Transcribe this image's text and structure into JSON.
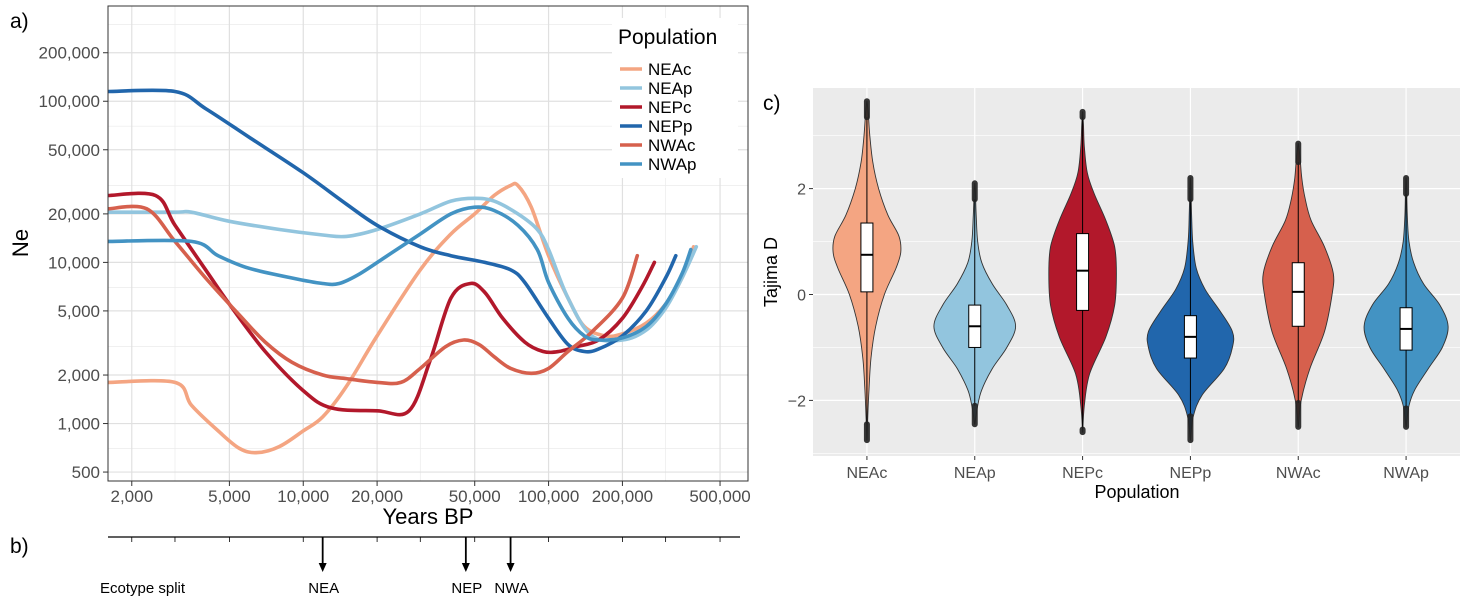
{
  "panels": {
    "a": "a)",
    "b": "b)",
    "c": "c)"
  },
  "colors": {
    "NEAc": "#f4a582",
    "NEAp": "#92c5de",
    "NEPc": "#b2182b",
    "NEPp": "#2166ac",
    "NWAc": "#d6604d",
    "NWAp": "#4393c3",
    "panel_c_bg": "#ebebeb",
    "panel_c_grid": "#ffffff",
    "panel_a_grid": "#ebebeb",
    "panel_a_border": "#333333"
  },
  "chart_data": [
    {
      "type": "line",
      "xlabel": "Years BP",
      "ylabel": "Ne",
      "xscale": "log",
      "yscale": "log",
      "xlim": [
        1600,
        650000
      ],
      "ylim": [
        440,
        390000
      ],
      "xticks": [
        2000,
        5000,
        10000,
        20000,
        50000,
        100000,
        200000,
        500000
      ],
      "xtick_labels": [
        "2,000",
        "5,000",
        "10,000",
        "20,000",
        "50,000",
        "100,000",
        "200,000",
        "500,000"
      ],
      "yticks": [
        500,
        1000,
        2000,
        5000,
        10000,
        20000,
        50000,
        100000,
        200000
      ],
      "ytick_labels": [
        "500",
        "1,000",
        "2,000",
        "5,000",
        "10,000",
        "20,000",
        "50,000",
        "100,000",
        "200,000"
      ],
      "grid": true,
      "legend": {
        "title": "Population",
        "position": "top-right"
      },
      "series": [
        {
          "name": "NEAc",
          "x": [
            1600,
            3000,
            3500,
            4500,
            5500,
            6500,
            8000,
            10000,
            12000,
            15000,
            20000,
            30000,
            40000,
            50000,
            60000,
            70000,
            75000,
            85000,
            100000,
            120000,
            140000,
            170000,
            200000,
            250000,
            300000,
            350000,
            390000
          ],
          "y": [
            1800,
            1800,
            1300,
            900,
            700,
            660,
            720,
            900,
            1100,
            1700,
            3500,
            9000,
            15000,
            20000,
            26000,
            30000,
            30000,
            22000,
            11000,
            6000,
            4000,
            3500,
            3600,
            4200,
            5500,
            8000,
            12500
          ]
        },
        {
          "name": "NEAp",
          "x": [
            1600,
            3000,
            3500,
            5000,
            8000,
            12000,
            15000,
            20000,
            30000,
            40000,
            50000,
            60000,
            75000,
            90000,
            100000,
            120000,
            150000,
            200000,
            250000,
            300000,
            350000,
            400000
          ],
          "y": [
            20500,
            20500,
            20500,
            18000,
            16000,
            14800,
            14500,
            16000,
            20000,
            24000,
            25000,
            24000,
            20000,
            16000,
            12000,
            6000,
            3500,
            3300,
            3800,
            5200,
            8000,
            12500
          ]
        },
        {
          "name": "NEPc",
          "x": [
            1600,
            2500,
            3000,
            4000,
            5000,
            7000,
            10000,
            13000,
            20000,
            27000,
            33000,
            40000,
            48000,
            55000,
            65000,
            80000,
            95000,
            110000,
            130000,
            160000,
            200000,
            240000,
            270000
          ],
          "y": [
            26000,
            26000,
            17000,
            9000,
            5500,
            2800,
            1600,
            1250,
            1200,
            1200,
            2500,
            6000,
            7400,
            6500,
            4500,
            3200,
            2800,
            2800,
            3000,
            3300,
            4500,
            7000,
            10000
          ]
        },
        {
          "name": "NEPp",
          "x": [
            1600,
            3000,
            4000,
            6000,
            10000,
            15000,
            20000,
            30000,
            40000,
            55000,
            70000,
            80000,
            100000,
            120000,
            140000,
            160000,
            200000,
            250000,
            300000,
            330000
          ],
          "y": [
            115000,
            115000,
            90000,
            60000,
            36000,
            23000,
            17000,
            12500,
            11000,
            10000,
            9000,
            7500,
            4500,
            3100,
            2800,
            2900,
            3500,
            5000,
            8000,
            11000
          ]
        },
        {
          "name": "NWAc",
          "x": [
            1600,
            2300,
            3000,
            4000,
            5500,
            7000,
            9000,
            12000,
            15000,
            20000,
            25000,
            30000,
            38000,
            45000,
            52000,
            60000,
            70000,
            85000,
            100000,
            120000,
            150000,
            200000,
            230000
          ],
          "y": [
            21500,
            21500,
            13500,
            8000,
            4700,
            3200,
            2400,
            2000,
            1900,
            1800,
            1800,
            2200,
            3000,
            3300,
            3100,
            2600,
            2200,
            2050,
            2200,
            2800,
            3700,
            6000,
            11000
          ]
        },
        {
          "name": "NWAp",
          "x": [
            1600,
            3500,
            4500,
            6000,
            9000,
            12000,
            14000,
            17000,
            22000,
            30000,
            40000,
            50000,
            60000,
            75000,
            90000,
            100000,
            120000,
            140000,
            160000,
            200000,
            250000,
            300000,
            350000,
            380000
          ],
          "y": [
            13500,
            13500,
            11000,
            9200,
            8000,
            7400,
            7400,
            8500,
            11000,
            15000,
            20000,
            22000,
            21000,
            17000,
            12000,
            7500,
            4500,
            3500,
            3300,
            3400,
            4000,
            5500,
            8500,
            12000
          ]
        }
      ]
    },
    {
      "type": "timeline",
      "label": "Ecotype split",
      "markers": [
        {
          "name": "NEA",
          "x": 12000
        },
        {
          "name": "NEP",
          "x": 46000
        },
        {
          "name": "NWA",
          "x": 70000
        }
      ]
    },
    {
      "type": "violin",
      "xlabel": "Population",
      "ylabel": "Tajima D",
      "ylim": [
        -3.05,
        3.9
      ],
      "yticks": [
        -2,
        0,
        2
      ],
      "ytick_labels": [
        "−2",
        "0",
        "2"
      ],
      "categories": [
        "NEAc",
        "NEAp",
        "NEPc",
        "NEPp",
        "NWAc",
        "NWAp"
      ],
      "series": [
        {
          "name": "NEAc",
          "min": -2.75,
          "max": 3.65,
          "q1": 0.05,
          "median": 0.75,
          "q3": 1.35,
          "whisker_low": -2.45,
          "whisker_high": 3.35,
          "density": [
            [
              -2.75,
              0.002
            ],
            [
              -2.3,
              0.015
            ],
            [
              -1.8,
              0.035
            ],
            [
              -1.2,
              0.07
            ],
            [
              -0.6,
              0.15
            ],
            [
              0,
              0.3
            ],
            [
              0.5,
              0.5
            ],
            [
              0.8,
              0.58
            ],
            [
              1.1,
              0.55
            ],
            [
              1.5,
              0.36
            ],
            [
              2.0,
              0.2
            ],
            [
              2.5,
              0.1
            ],
            [
              3.0,
              0.05
            ],
            [
              3.4,
              0.025
            ],
            [
              3.65,
              0.002
            ]
          ]
        },
        {
          "name": "NEAp",
          "min": -2.45,
          "max": 2.1,
          "q1": -1.0,
          "median": -0.6,
          "q3": -0.2,
          "whisker_low": -2.1,
          "whisker_high": 1.8,
          "density": [
            [
              -2.45,
              0.002
            ],
            [
              -2.1,
              0.05
            ],
            [
              -1.8,
              0.12
            ],
            [
              -1.4,
              0.3
            ],
            [
              -1.0,
              0.55
            ],
            [
              -0.6,
              0.7
            ],
            [
              -0.2,
              0.55
            ],
            [
              0.2,
              0.3
            ],
            [
              0.6,
              0.12
            ],
            [
              1.0,
              0.05
            ],
            [
              1.5,
              0.025
            ],
            [
              1.9,
              0.012
            ],
            [
              2.1,
              0.002
            ]
          ]
        },
        {
          "name": "NEPc",
          "min": -2.6,
          "max": 3.45,
          "q1": -0.3,
          "median": 0.45,
          "q3": 1.15,
          "whisker_low": -2.55,
          "whisker_high": 3.35,
          "density": [
            [
              -2.6,
              0.002
            ],
            [
              -2.1,
              0.03
            ],
            [
              -1.5,
              0.12
            ],
            [
              -0.8,
              0.4
            ],
            [
              -0.2,
              0.55
            ],
            [
              0.4,
              0.58
            ],
            [
              0.9,
              0.55
            ],
            [
              1.4,
              0.4
            ],
            [
              1.9,
              0.2
            ],
            [
              2.3,
              0.08
            ],
            [
              2.8,
              0.03
            ],
            [
              3.2,
              0.015
            ],
            [
              3.45,
              0.002
            ]
          ]
        },
        {
          "name": "NEPp",
          "min": -2.75,
          "max": 2.2,
          "q1": -1.2,
          "median": -0.8,
          "q3": -0.4,
          "whisker_low": -2.3,
          "whisker_high": 1.8,
          "density": [
            [
              -2.75,
              0.002
            ],
            [
              -2.3,
              0.05
            ],
            [
              -1.9,
              0.2
            ],
            [
              -1.4,
              0.58
            ],
            [
              -1.0,
              0.72
            ],
            [
              -0.7,
              0.72
            ],
            [
              -0.3,
              0.5
            ],
            [
              0.1,
              0.25
            ],
            [
              0.5,
              0.1
            ],
            [
              1.0,
              0.04
            ],
            [
              1.5,
              0.02
            ],
            [
              2.0,
              0.01
            ],
            [
              2.2,
              0.002
            ]
          ]
        },
        {
          "name": "NWAc",
          "min": -2.5,
          "max": 2.85,
          "q1": -0.6,
          "median": 0.05,
          "q3": 0.6,
          "whisker_low": -2.05,
          "whisker_high": 2.5,
          "density": [
            [
              -2.5,
              0.002
            ],
            [
              -2.0,
              0.05
            ],
            [
              -1.4,
              0.2
            ],
            [
              -0.7,
              0.45
            ],
            [
              0,
              0.58
            ],
            [
              0.4,
              0.6
            ],
            [
              0.9,
              0.45
            ],
            [
              1.4,
              0.22
            ],
            [
              1.8,
              0.12
            ],
            [
              2.2,
              0.06
            ],
            [
              2.6,
              0.03
            ],
            [
              2.85,
              0.002
            ]
          ]
        },
        {
          "name": "NWAp",
          "min": -2.5,
          "max": 2.2,
          "q1": -1.05,
          "median": -0.65,
          "q3": -0.25,
          "whisker_low": -2.15,
          "whisker_high": 1.9,
          "density": [
            [
              -2.5,
              0.002
            ],
            [
              -2.1,
              0.05
            ],
            [
              -1.8,
              0.15
            ],
            [
              -1.4,
              0.38
            ],
            [
              -1.0,
              0.62
            ],
            [
              -0.6,
              0.72
            ],
            [
              -0.2,
              0.58
            ],
            [
              0.2,
              0.3
            ],
            [
              0.6,
              0.13
            ],
            [
              1.0,
              0.05
            ],
            [
              1.5,
              0.02
            ],
            [
              2.0,
              0.01
            ],
            [
              2.2,
              0.002
            ]
          ]
        }
      ]
    }
  ]
}
